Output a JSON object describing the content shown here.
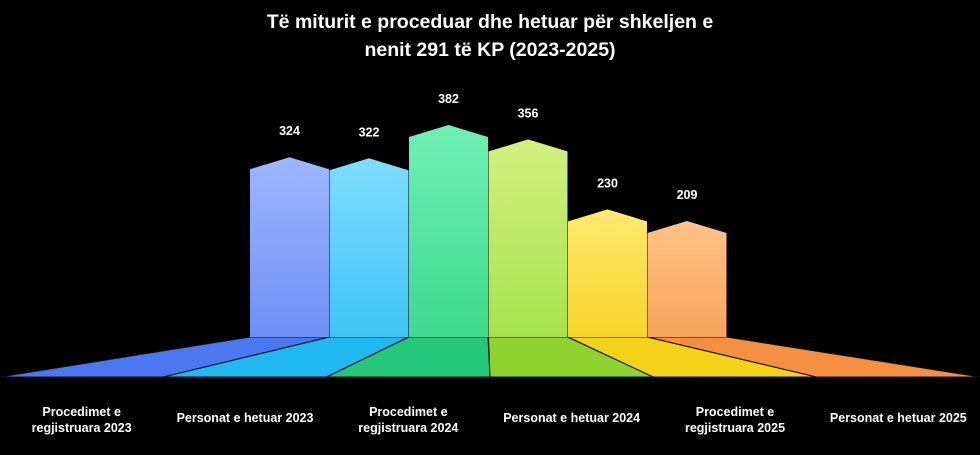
{
  "chart_data": {
    "type": "bar",
    "title_lines": [
      "Të miturit e proceduar dhe hetuar për shkeljen e",
      "nenit 291 të KP (2023-2025)"
    ],
    "categories": [
      [
        "Procedimet e",
        "regjistruara 2023"
      ],
      [
        "Personat e hetuar 2023"
      ],
      [
        "Procedimet e",
        "regjistruara 2024"
      ],
      [
        "Personat e hetuar 2024"
      ],
      [
        "Procedimet e",
        "regjistruara 2025"
      ],
      [
        "Personat e hetuar 2025"
      ]
    ],
    "values": [
      324,
      322,
      382,
      356,
      230,
      209
    ],
    "colors": [
      "#6f8ff5",
      "#3fc4f5",
      "#3fd98e",
      "#a8e24e",
      "#f6d52a",
      "#f7a45a"
    ],
    "colors_light": [
      "#9db7ff",
      "#7fdcff",
      "#6ff0b4",
      "#d2f07f",
      "#ffe870",
      "#ffc288"
    ],
    "floor_colors": [
      "#4a78f0",
      "#20b8f0",
      "#25c77a",
      "#8fd330",
      "#f4d21a",
      "#f59040"
    ],
    "ylim": [
      0,
      400
    ]
  }
}
